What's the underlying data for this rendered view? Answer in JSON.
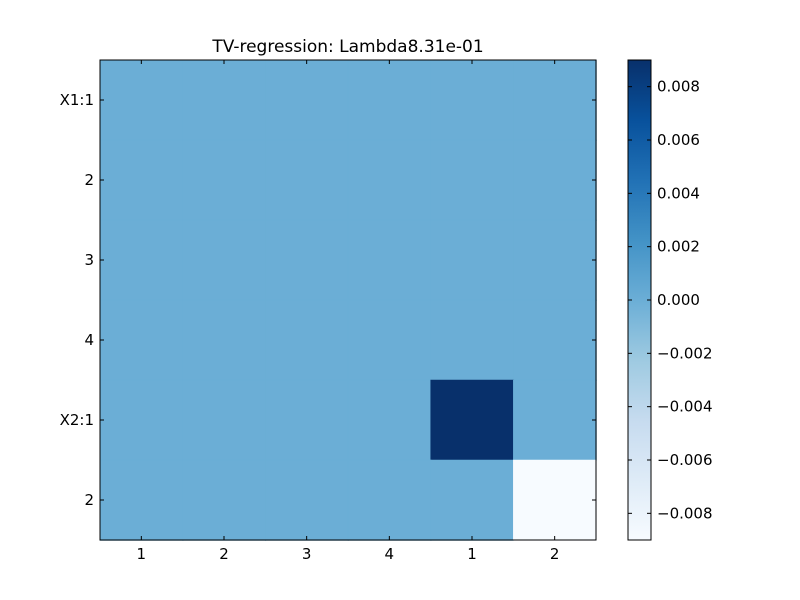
{
  "chart_data": {
    "type": "heatmap",
    "title": "TV-regression: Lambda8.31e-01",
    "x_tick_labels": [
      "1",
      "2",
      "3",
      "4",
      "1",
      "2"
    ],
    "y_tick_labels": [
      "X1:1",
      "2",
      "3",
      "4",
      "X2:1",
      "2"
    ],
    "matrix": [
      [
        0,
        0,
        0,
        0,
        0,
        0
      ],
      [
        0,
        0,
        0,
        0,
        0,
        0
      ],
      [
        0,
        0,
        0,
        0,
        0,
        0
      ],
      [
        0,
        0,
        0,
        0,
        0,
        0
      ],
      [
        0,
        0,
        0,
        0,
        0.009,
        0
      ],
      [
        0,
        0,
        0,
        0,
        0,
        -0.009
      ]
    ],
    "colormap": "Blues",
    "colorbar": {
      "range": [
        -0.009,
        0.009
      ],
      "ticks": [
        0.008,
        0.006,
        0.004,
        0.002,
        0.0,
        -0.002,
        -0.004,
        -0.006,
        -0.008
      ],
      "tick_labels": [
        "0.008",
        "0.006",
        "0.004",
        "0.002",
        "0.000",
        "−0.002",
        "−0.004",
        "−0.006",
        "−0.008"
      ]
    },
    "grid": false
  }
}
